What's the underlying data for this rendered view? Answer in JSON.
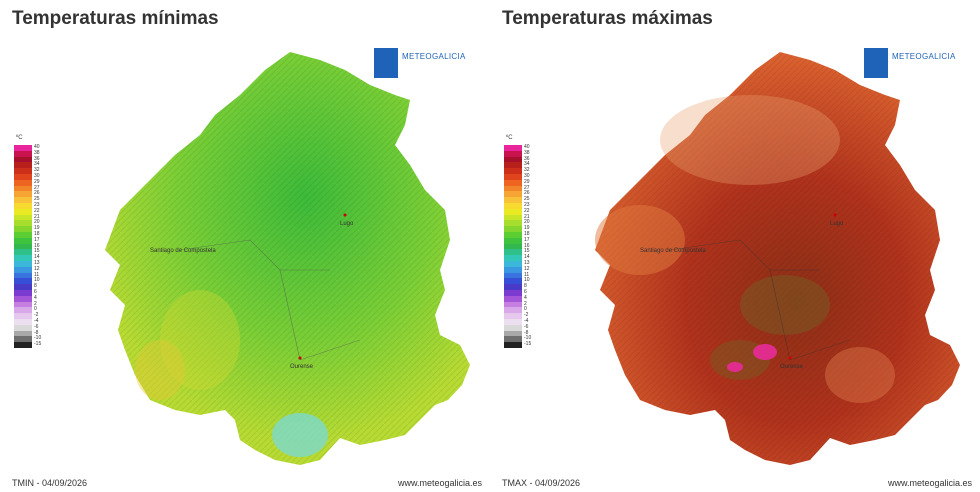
{
  "panels": [
    {
      "title": "Temperaturas mínimas",
      "logo_text": "METEOGALICIA",
      "legend_unit": "ºC",
      "footer_left": "TMIN - 04/09/2026",
      "footer_right": "www.meteogalicia.es",
      "cities": [
        "Lugo",
        "Santiago de Compostela",
        "Ourense"
      ],
      "map_colors": {
        "base": "#8fd23a",
        "inland": "#3cbb3a",
        "coast": "#d7d932",
        "south": "#6fcf9a"
      }
    },
    {
      "title": "Temperaturas máximas",
      "logo_text": "METEOGALICIA",
      "legend_unit": "ºC",
      "footer_left": "TMAX - 04/09/2026",
      "footer_right": "www.meteogalicia.es",
      "cities": [
        "Lugo",
        "Santiago de Compostela",
        "Ourense"
      ],
      "map_colors": {
        "base": "#d6532a",
        "inland": "#b0321c",
        "coast": "#e07a3e",
        "south": "#8c2f16",
        "hot": "#e02d8d"
      }
    }
  ],
  "legend": {
    "labels": [
      "40",
      "38",
      "36",
      "34",
      "32",
      "30",
      "29",
      "27",
      "26",
      "25",
      "23",
      "22",
      "21",
      "20",
      "19",
      "18",
      "17",
      "16",
      "15",
      "14",
      "13",
      "12",
      "11",
      "10",
      "8",
      "6",
      "4",
      "2",
      "0",
      "-2",
      "-4",
      "-6",
      "-8",
      "-10",
      "-15"
    ],
    "colors": [
      "#e8259a",
      "#c9134f",
      "#a6102c",
      "#b8201c",
      "#cc2f1a",
      "#e0441d",
      "#ee6522",
      "#f2852a",
      "#f6a433",
      "#f8c13a",
      "#f7da30",
      "#eaea24",
      "#c9e528",
      "#a7dd2c",
      "#84d62e",
      "#5ccd33",
      "#3fc23d",
      "#32b84e",
      "#2fc08a",
      "#33c7b8",
      "#3bb8d9",
      "#3a98e0",
      "#3873e0",
      "#3550d6",
      "#4a3ac8",
      "#7b3ad0",
      "#a455d8",
      "#c47fe0",
      "#d8a8e8",
      "#e6c8ee",
      "#ece0f0",
      "#d9d9d9",
      "#a8a8a8",
      "#6e6e6e",
      "#222222"
    ]
  }
}
